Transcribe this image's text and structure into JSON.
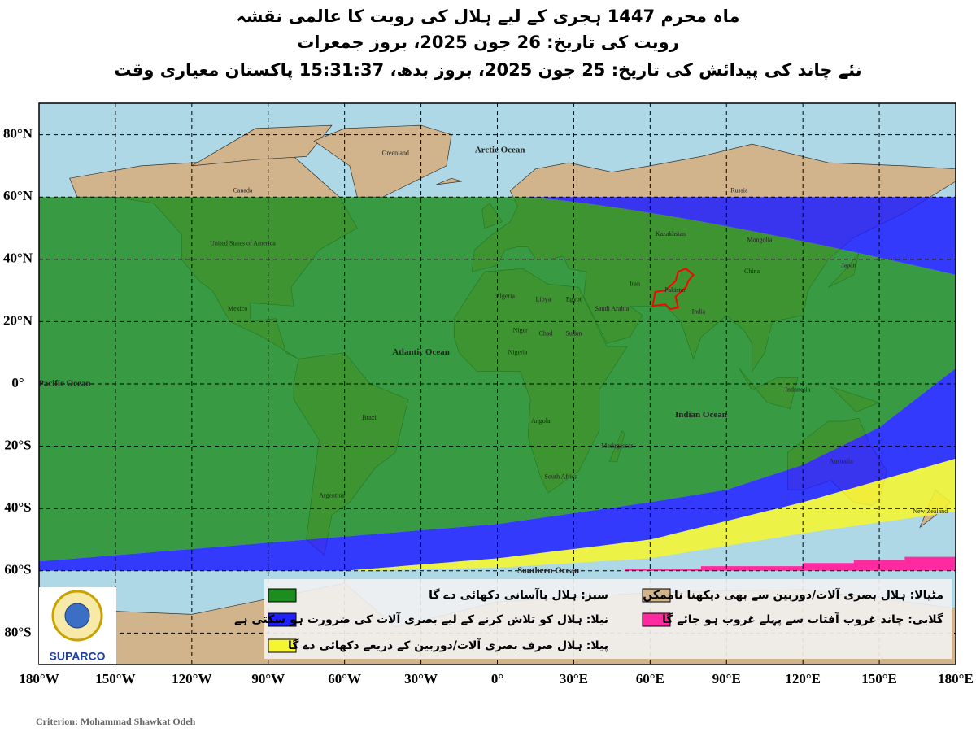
{
  "header": {
    "title": "ماہ محرم 1447 ہجری کے لیے ہلال کی رویت کا عالمی نقشہ",
    "subtitle": "رویت کی تاریخ:  26 جون 2025، بروز جمعرات",
    "new_moon": "نئے چاند کی پیدائش کی تاریخ: 25 جون 2025، بروز بدھ، 15:31:37 پاکستان معیاری وقت"
  },
  "map": {
    "lat_labels": [
      "80°N",
      "60°N",
      "40°N",
      "20°N",
      "0°",
      "20°S",
      "40°S",
      "60°S",
      "80°S"
    ],
    "lon_labels": [
      "180°W",
      "150°W",
      "120°W",
      "90°W",
      "60°W",
      "30°W",
      "0°",
      "30°E",
      "60°E",
      "90°E",
      "120°E",
      "150°E",
      "180°E"
    ],
    "oceans": [
      "Arctic Ocean",
      "Atlantic Ocean",
      "Pacific Ocean",
      "Indian Ocean",
      "Southern Ocean"
    ],
    "places": [
      "Greenland",
      "Canada",
      "United States of America",
      "Mexico",
      "Brazil",
      "Argentina",
      "Russia",
      "China",
      "Australia",
      "New Zealand",
      "Kazakhstan",
      "Mongolia",
      "Pakistan",
      "India",
      "Iran",
      "Algeria",
      "Libya",
      "Egypt",
      "Sudan",
      "Chad",
      "Niger",
      "Nigeria",
      "Angola",
      "South Africa",
      "Saudi Arabia",
      "Japan",
      "Indonesia",
      "Madagascar"
    ]
  },
  "legend": {
    "items": [
      {
        "label": "سبز: ہلال باآسانی دکھائی دے گا",
        "color": "#1e8c1e"
      },
      {
        "label": "نیلا: ہلال کو تلاش کرنے کے لیے بصری آلات کی ضرورت ہو سکتی ہے",
        "color": "#1f1fff"
      },
      {
        "label": "پیلا: ہلال صرف بصری آلات/دوربین کے ذریعے دکھائی دے گا",
        "color": "#f5f530"
      },
      {
        "label": "مٹیالا: ہلال بصری آلات/دوربین سے بھی دیکھنا ناممکن",
        "color": "#d2b48c"
      },
      {
        "label": "گلابی: چاند غروب آفتاب سے پہلے غروب ہو جائے گا",
        "color": "#ff2aa0"
      }
    ]
  },
  "logo": {
    "name": "SUPARCO"
  },
  "footer": {
    "credit": "Criterion: Mohammad Shawkat Odeh"
  }
}
